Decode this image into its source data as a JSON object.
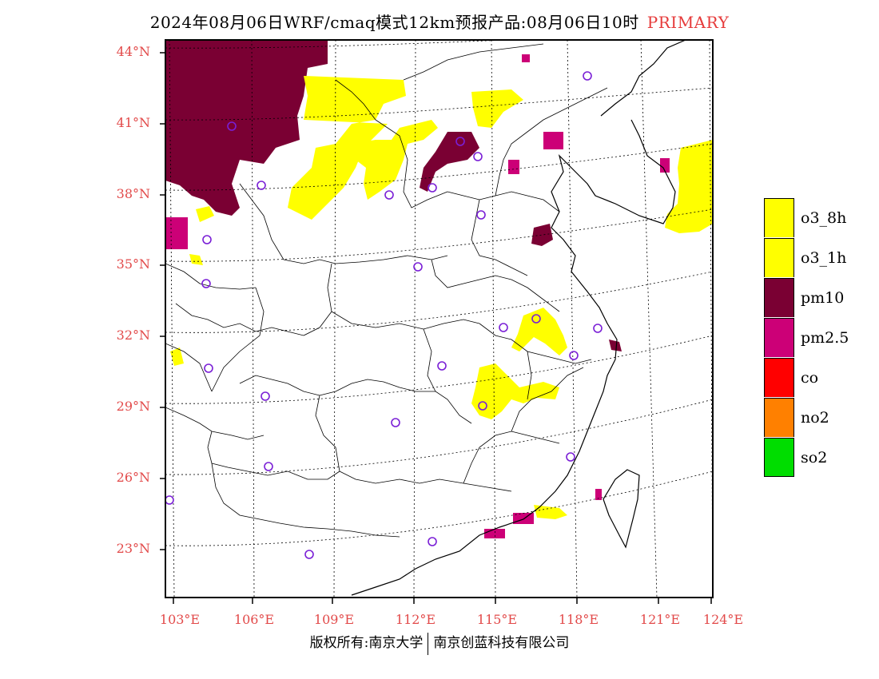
{
  "header": {
    "title": "2024年08月06日WRF/cmaq模式12km预报产品:08月06日10时",
    "tag": "PRIMARY"
  },
  "map": {
    "lat_labels": [
      "44°N",
      "41°N",
      "38°N",
      "35°N",
      "32°N",
      "29°N",
      "26°N",
      "23°N"
    ],
    "lon_labels": [
      "103°E",
      "106°E",
      "109°E",
      "112°E",
      "115°E",
      "118°E",
      "121°E",
      "124°E"
    ]
  },
  "legend": {
    "items": [
      {
        "label": "o3_8h",
        "color": "#ffff00"
      },
      {
        "label": "o3_1h",
        "color": "#ffff00"
      },
      {
        "label": "pm10",
        "color": "#7a0033"
      },
      {
        "label": "pm2.5",
        "color": "#cc0077"
      },
      {
        "label": "co",
        "color": "#ff0000"
      },
      {
        "label": "no2",
        "color": "#ff8000"
      },
      {
        "label": "so2",
        "color": "#00dd00"
      }
    ]
  },
  "footer": {
    "left": "版权所有:南京大学",
    "right": "南京创蓝科技有限公司"
  },
  "colors": {
    "label_red": "#e24a4a",
    "pm10": "#7a0033",
    "pm25": "#cc0077",
    "o3": "#ffff00",
    "station": "#7a1fd6"
  }
}
